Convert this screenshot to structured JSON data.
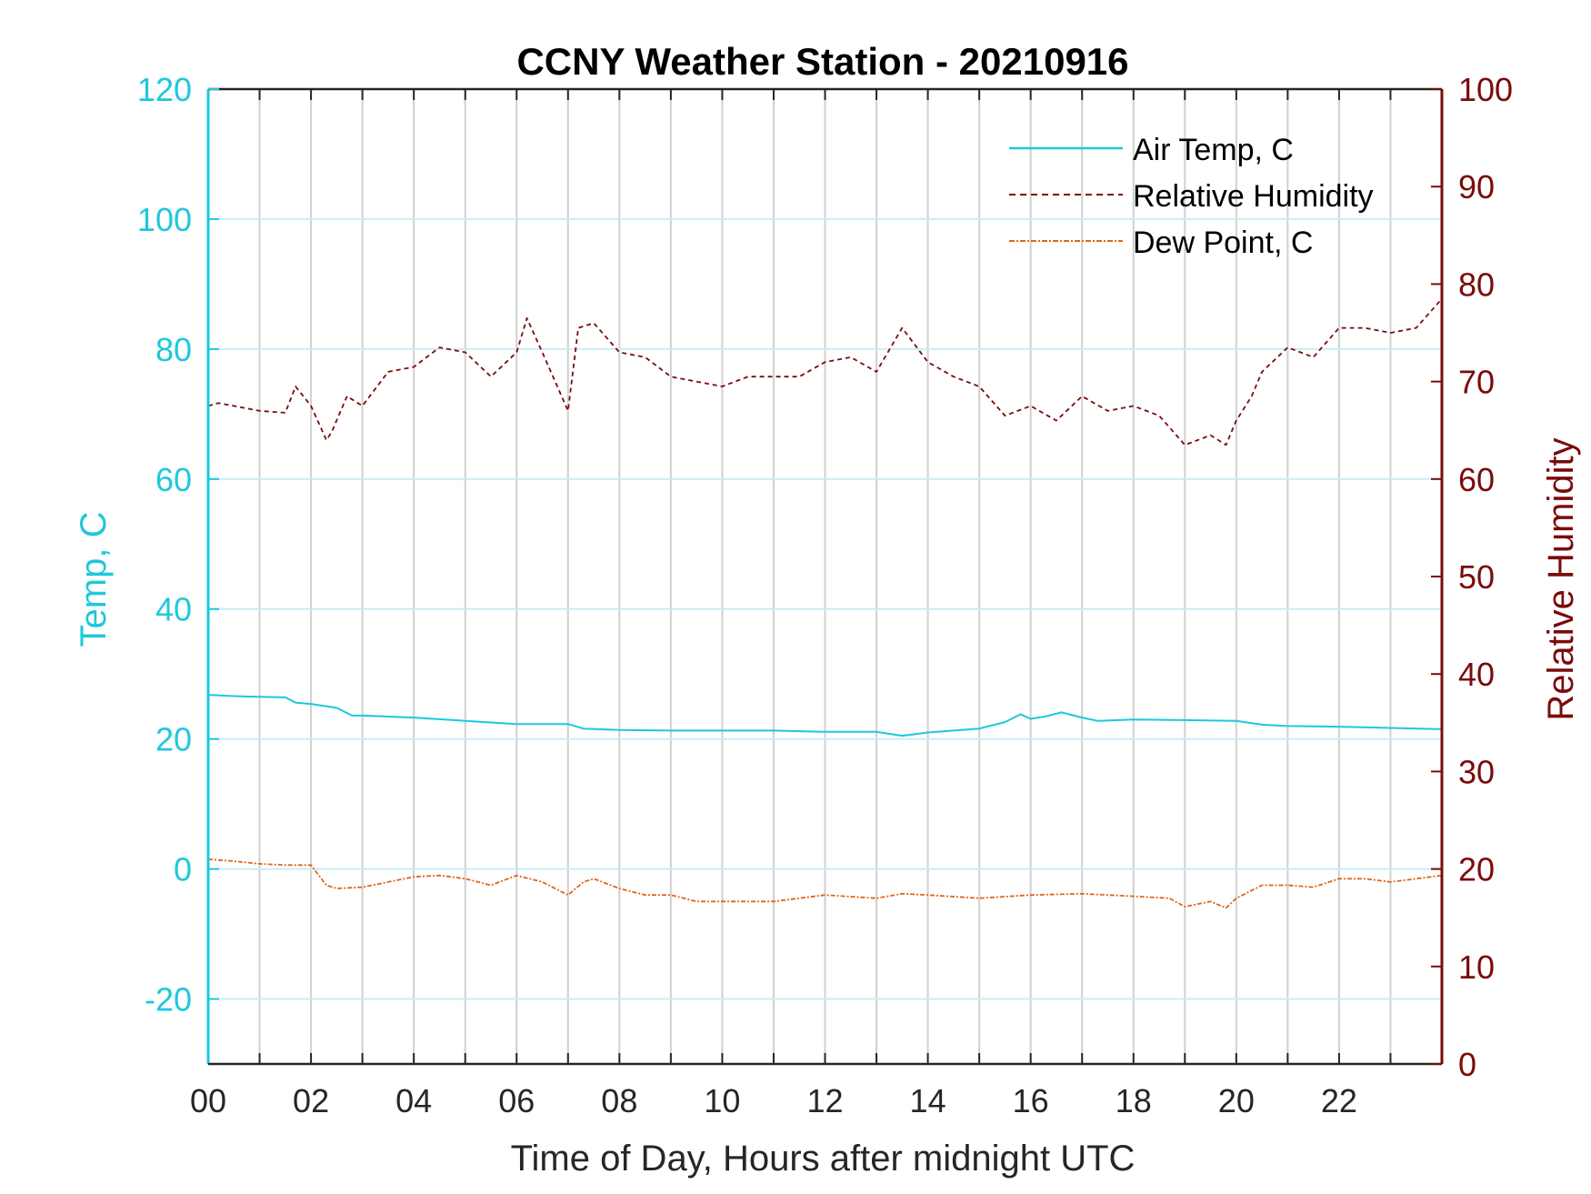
{
  "chart_data": {
    "type": "line",
    "title": "CCNY Weather Station - 20210916",
    "xlabel": "Time of Day, Hours after midnight UTC",
    "ylabel_left": "Temp, C",
    "ylabel_right": "Relative Humidity",
    "xlim": [
      0,
      24
    ],
    "ylim_left": [
      -30,
      120
    ],
    "ylim_right": [
      0,
      100
    ],
    "x_ticks": [
      0,
      2,
      4,
      6,
      8,
      10,
      12,
      14,
      16,
      18,
      20,
      22
    ],
    "x_tick_labels": [
      "00",
      "02",
      "04",
      "06",
      "08",
      "10",
      "12",
      "14",
      "16",
      "18",
      "20",
      "22"
    ],
    "y_left_ticks": [
      -20,
      0,
      20,
      40,
      60,
      80,
      100,
      120
    ],
    "y_left_tick_labels": [
      "-20",
      "0",
      "20",
      "40",
      "60",
      "80",
      "100",
      "120"
    ],
    "y_right_ticks": [
      0,
      10,
      20,
      30,
      40,
      50,
      60,
      70,
      80,
      90,
      100
    ],
    "y_right_tick_labels": [
      "0",
      "10",
      "20",
      "30",
      "40",
      "50",
      "60",
      "70",
      "80",
      "90",
      "100"
    ],
    "grid": true,
    "legend_position": "top-right",
    "colors": {
      "air_temp": "#1ec8dc",
      "relative_humidity": "#7a0b0b",
      "dew_point": "#e0651c",
      "grid_vertical": "#d0d0d0",
      "grid_horizontal": "#c8eef4"
    },
    "series": [
      {
        "name": "Air Temp, C",
        "axis": "left",
        "style": "solid",
        "x": [
          0,
          0.5,
          1,
          1.5,
          1.7,
          2,
          2.5,
          2.8,
          3,
          4,
          5,
          6,
          7,
          7.3,
          8,
          9,
          10,
          11,
          12,
          13,
          13.5,
          14,
          15,
          15.5,
          15.8,
          16,
          16.3,
          16.6,
          17,
          17.3,
          18,
          19,
          20,
          20.5,
          21,
          22,
          23,
          24
        ],
        "values": [
          26.8,
          26.6,
          26.5,
          26.4,
          25.6,
          25.4,
          24.8,
          23.6,
          23.6,
          23.3,
          22.8,
          22.3,
          22.3,
          21.6,
          21.4,
          21.3,
          21.3,
          21.3,
          21.1,
          21.1,
          20.5,
          21.0,
          21.6,
          22.6,
          23.8,
          23.1,
          23.5,
          24.1,
          23.3,
          22.8,
          23.0,
          22.9,
          22.8,
          22.2,
          22.0,
          21.9,
          21.7,
          21.5
        ]
      },
      {
        "name": "Relative Humidity",
        "axis": "right",
        "style": "dashed",
        "x": [
          0,
          0.2,
          0.5,
          1,
          1.5,
          1.7,
          2,
          2.3,
          2.4,
          2.7,
          3,
          3.5,
          4,
          4.5,
          5,
          5.5,
          6,
          6.2,
          6.5,
          7,
          7.2,
          7.5,
          8,
          8.5,
          9,
          9.5,
          10,
          10.5,
          11,
          11.5,
          12,
          12.5,
          13,
          13.5,
          14,
          14.5,
          15,
          15.5,
          16,
          16.5,
          17,
          17.5,
          18,
          18.5,
          19,
          19.5,
          19.8,
          20,
          20.3,
          20.5,
          21,
          21.5,
          22,
          22.5,
          23,
          23.5,
          24
        ],
        "values": [
          67.5,
          67.8,
          67.5,
          67.0,
          66.8,
          69.5,
          67.5,
          64.0,
          64.8,
          68.5,
          67.5,
          71.0,
          71.5,
          73.5,
          73.0,
          70.5,
          73.0,
          76.5,
          73.0,
          67.0,
          75.5,
          76.0,
          73.0,
          72.5,
          70.5,
          70.0,
          69.5,
          70.5,
          70.5,
          70.5,
          72.0,
          72.5,
          71.0,
          75.5,
          72.0,
          70.5,
          69.5,
          66.5,
          67.5,
          66.0,
          68.5,
          67.0,
          67.5,
          66.5,
          63.5,
          64.5,
          63.5,
          66.0,
          68.5,
          71.0,
          73.5,
          72.5,
          75.5,
          75.5,
          75.0,
          75.5,
          78.5
        ]
      },
      {
        "name": "Dew Point, C",
        "axis": "left",
        "style": "dashdot",
        "x": [
          0,
          0.5,
          1,
          1.5,
          2,
          2.3,
          2.5,
          3,
          3.5,
          4,
          4.5,
          5,
          5.5,
          6,
          6.5,
          7,
          7.3,
          7.5,
          8,
          8.5,
          9,
          9.5,
          10,
          11,
          12,
          13,
          13.5,
          14,
          15,
          16,
          17,
          18,
          18.7,
          19,
          19.5,
          19.8,
          20,
          20.5,
          21,
          21.5,
          22,
          22.5,
          23,
          24
        ],
        "values": [
          1.5,
          1.2,
          0.8,
          0.6,
          0.6,
          -2.5,
          -3.0,
          -2.8,
          -2.0,
          -1.2,
          -1.0,
          -1.5,
          -2.5,
          -1.0,
          -2.0,
          -4.0,
          -2.0,
          -1.5,
          -3.0,
          -4.0,
          -4.0,
          -5.0,
          -5.0,
          -5.0,
          -4.0,
          -4.5,
          -3.8,
          -4.0,
          -4.5,
          -4.0,
          -3.8,
          -4.2,
          -4.5,
          -5.8,
          -5.0,
          -6.0,
          -4.5,
          -2.5,
          -2.5,
          -2.8,
          -1.5,
          -1.5,
          -2.0,
          -1.0
        ]
      }
    ]
  }
}
